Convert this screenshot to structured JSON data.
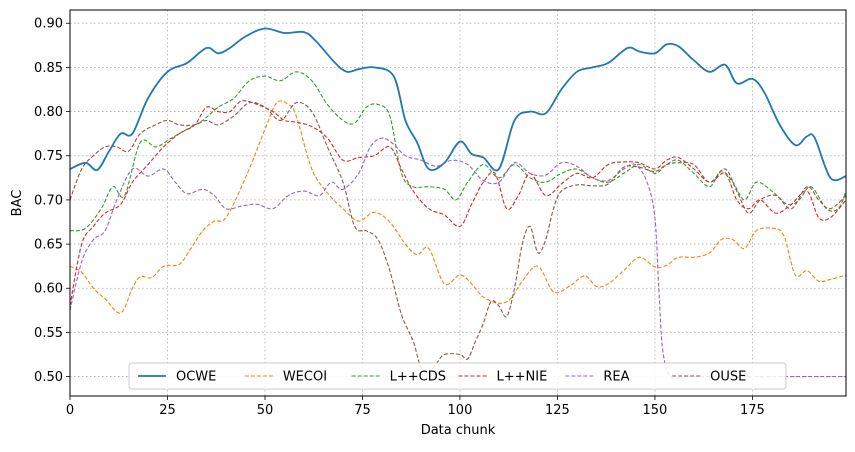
{
  "chart_data": {
    "type": "line",
    "title": "",
    "xlabel": "Data chunk",
    "ylabel": "BAC",
    "xlim": [
      0,
      199
    ],
    "ylim": [
      0.478,
      0.915
    ],
    "xticks": [
      0,
      25,
      50,
      75,
      100,
      125,
      150,
      175
    ],
    "yticks": [
      0.5,
      0.55,
      0.6,
      0.65,
      0.7,
      0.75,
      0.8,
      0.85,
      0.9
    ],
    "xtick_labels": [
      "0",
      "25",
      "50",
      "75",
      "100",
      "125",
      "150",
      "175"
    ],
    "ytick_labels": [
      "0.50",
      "0.55",
      "0.60",
      "0.65",
      "0.70",
      "0.75",
      "0.80",
      "0.85",
      "0.90"
    ],
    "grid": true,
    "legend_position": "bottom-center",
    "series": [
      {
        "name": "OCWE",
        "color": "#1f77b4",
        "dash": "solid",
        "x": [
          0,
          4,
          7,
          10,
          13,
          16,
          20,
          25,
          30,
          35,
          38,
          41,
          45,
          50,
          55,
          60,
          63,
          68,
          71,
          74,
          78,
          83,
          86,
          89,
          92,
          96,
          100,
          103,
          106,
          110,
          114,
          118,
          122,
          126,
          130,
          134,
          138,
          143,
          146,
          150,
          153,
          156,
          160,
          164,
          168,
          171,
          175,
          178,
          182,
          186,
          189,
          191,
          195,
          199
        ],
        "y": [
          0.735,
          0.742,
          0.734,
          0.755,
          0.775,
          0.775,
          0.815,
          0.845,
          0.855,
          0.872,
          0.866,
          0.872,
          0.885,
          0.894,
          0.889,
          0.89,
          0.88,
          0.855,
          0.845,
          0.848,
          0.85,
          0.84,
          0.79,
          0.765,
          0.735,
          0.742,
          0.766,
          0.752,
          0.748,
          0.735,
          0.79,
          0.8,
          0.798,
          0.825,
          0.845,
          0.85,
          0.855,
          0.872,
          0.868,
          0.866,
          0.876,
          0.874,
          0.858,
          0.845,
          0.853,
          0.832,
          0.837,
          0.822,
          0.785,
          0.762,
          0.772,
          0.77,
          0.725,
          0.727
        ]
      },
      {
        "name": "WECOI",
        "color": "#ff7f0e",
        "dash": "dashed",
        "x": [
          0,
          3,
          6,
          9,
          13,
          16,
          18,
          21,
          24,
          28,
          31,
          34,
          37,
          40,
          45,
          50,
          53,
          56,
          58,
          62,
          66,
          70,
          74,
          78,
          82,
          86,
          89,
          92,
          96,
          100,
          103,
          106,
          110,
          113,
          116,
          120,
          124,
          128,
          132,
          135,
          138,
          142,
          146,
          150,
          153,
          156,
          160,
          164,
          167,
          170,
          173,
          176,
          180,
          183,
          186,
          189,
          192,
          195,
          199
        ],
        "y": [
          0.625,
          0.618,
          0.6,
          0.588,
          0.572,
          0.6,
          0.613,
          0.612,
          0.625,
          0.627,
          0.645,
          0.665,
          0.676,
          0.68,
          0.725,
          0.78,
          0.81,
          0.808,
          0.795,
          0.735,
          0.708,
          0.69,
          0.676,
          0.686,
          0.675,
          0.65,
          0.638,
          0.645,
          0.605,
          0.615,
          0.605,
          0.59,
          0.583,
          0.588,
          0.608,
          0.625,
          0.596,
          0.602,
          0.614,
          0.602,
          0.605,
          0.62,
          0.635,
          0.624,
          0.626,
          0.635,
          0.635,
          0.64,
          0.655,
          0.655,
          0.645,
          0.665,
          0.668,
          0.66,
          0.615,
          0.62,
          0.608,
          0.61,
          0.615
        ]
      },
      {
        "name": "L++CDS",
        "color": "#2ca02c",
        "dash": "dashed",
        "x": [
          0,
          4,
          8,
          11,
          14,
          18,
          22,
          26,
          30,
          34,
          38,
          42,
          46,
          50,
          54,
          58,
          62,
          66,
          70,
          73,
          76,
          79,
          82,
          85,
          88,
          92,
          96,
          99,
          102,
          106,
          110,
          114,
          118,
          122,
          126,
          130,
          134,
          138,
          142,
          146,
          150,
          153,
          156,
          160,
          164,
          167,
          170,
          173,
          176,
          180,
          184,
          187,
          190,
          194,
          197,
          199
        ],
        "y": [
          0.665,
          0.668,
          0.69,
          0.715,
          0.705,
          0.765,
          0.76,
          0.77,
          0.78,
          0.79,
          0.805,
          0.815,
          0.835,
          0.84,
          0.835,
          0.845,
          0.835,
          0.808,
          0.79,
          0.787,
          0.805,
          0.808,
          0.795,
          0.73,
          0.715,
          0.715,
          0.712,
          0.7,
          0.72,
          0.74,
          0.725,
          0.74,
          0.725,
          0.72,
          0.73,
          0.735,
          0.725,
          0.72,
          0.73,
          0.74,
          0.73,
          0.74,
          0.745,
          0.73,
          0.715,
          0.733,
          0.72,
          0.7,
          0.72,
          0.71,
          0.695,
          0.7,
          0.715,
          0.69,
          0.69,
          0.71
        ]
      },
      {
        "name": "L++NIE",
        "color": "#d62728",
        "dash": "dashed",
        "x": [
          0,
          3,
          6,
          9,
          13,
          16,
          20,
          24,
          28,
          32,
          35,
          38,
          41,
          44,
          48,
          52,
          55,
          58,
          62,
          66,
          70,
          74,
          78,
          82,
          85,
          88,
          92,
          96,
          100,
          103,
          106,
          109,
          112,
          115,
          118,
          122,
          126,
          130,
          134,
          138,
          142,
          146,
          150,
          153,
          156,
          160,
          164,
          168,
          171,
          174,
          177,
          181,
          185,
          189,
          192,
          195,
          199
        ],
        "y": [
          0.58,
          0.65,
          0.67,
          0.685,
          0.695,
          0.72,
          0.74,
          0.76,
          0.775,
          0.785,
          0.805,
          0.8,
          0.8,
          0.812,
          0.808,
          0.8,
          0.79,
          0.788,
          0.783,
          0.77,
          0.745,
          0.748,
          0.75,
          0.76,
          0.735,
          0.71,
          0.69,
          0.683,
          0.67,
          0.695,
          0.72,
          0.73,
          0.69,
          0.705,
          0.73,
          0.705,
          0.718,
          0.73,
          0.725,
          0.74,
          0.743,
          0.742,
          0.735,
          0.745,
          0.748,
          0.735,
          0.72,
          0.73,
          0.7,
          0.69,
          0.7,
          0.685,
          0.695,
          0.71,
          0.68,
          0.68,
          0.7
        ]
      },
      {
        "name": "REA",
        "color": "#9467bd",
        "dash": "dashed",
        "x": [
          0,
          3,
          6,
          9,
          12,
          16,
          20,
          24,
          27,
          30,
          34,
          37,
          40,
          44,
          48,
          52,
          56,
          60,
          64,
          67,
          70,
          74,
          77,
          80,
          83,
          86,
          90,
          94,
          98,
          102,
          106,
          110,
          114,
          118,
          122,
          126,
          130,
          134,
          138,
          142,
          145,
          148,
          150,
          151,
          152,
          154,
          158,
          165,
          180,
          199
        ],
        "y": [
          0.575,
          0.63,
          0.655,
          0.665,
          0.7,
          0.735,
          0.727,
          0.735,
          0.72,
          0.707,
          0.712,
          0.705,
          0.69,
          0.693,
          0.695,
          0.69,
          0.705,
          0.71,
          0.705,
          0.72,
          0.712,
          0.73,
          0.76,
          0.77,
          0.763,
          0.75,
          0.745,
          0.738,
          0.745,
          0.74,
          0.722,
          0.72,
          0.742,
          0.73,
          0.728,
          0.742,
          0.738,
          0.725,
          0.722,
          0.735,
          0.74,
          0.72,
          0.68,
          0.6,
          0.53,
          0.5,
          0.5,
          0.5,
          0.5,
          0.5
        ]
      },
      {
        "name": "OUSE",
        "color": "#8c564b",
        "dash": "dashed",
        "x": [
          0,
          3,
          6,
          9,
          12,
          15,
          18,
          22,
          25,
          28,
          32,
          35,
          38,
          42,
          46,
          50,
          54,
          58,
          62,
          66,
          70,
          73,
          76,
          79,
          82,
          85,
          88,
          90,
          92,
          94,
          96,
          100,
          102,
          104,
          106,
          108,
          110,
          112,
          114,
          116,
          118,
          120,
          122,
          124,
          126,
          130,
          134,
          138,
          142,
          146,
          150,
          153,
          156,
          160,
          164,
          168,
          171,
          174,
          177,
          181,
          185,
          189,
          192,
          195,
          199
        ],
        "y": [
          0.7,
          0.735,
          0.75,
          0.76,
          0.76,
          0.755,
          0.775,
          0.785,
          0.79,
          0.785,
          0.785,
          0.79,
          0.785,
          0.795,
          0.81,
          0.805,
          0.79,
          0.81,
          0.8,
          0.76,
          0.72,
          0.67,
          0.665,
          0.655,
          0.62,
          0.57,
          0.54,
          0.51,
          0.505,
          0.515,
          0.525,
          0.525,
          0.52,
          0.54,
          0.56,
          0.585,
          0.58,
          0.568,
          0.6,
          0.65,
          0.67,
          0.64,
          0.655,
          0.69,
          0.71,
          0.717,
          0.716,
          0.718,
          0.737,
          0.737,
          0.732,
          0.74,
          0.742,
          0.74,
          0.72,
          0.735,
          0.71,
          0.685,
          0.7,
          0.705,
          0.69,
          0.715,
          0.7,
          0.69,
          0.705
        ]
      }
    ]
  }
}
